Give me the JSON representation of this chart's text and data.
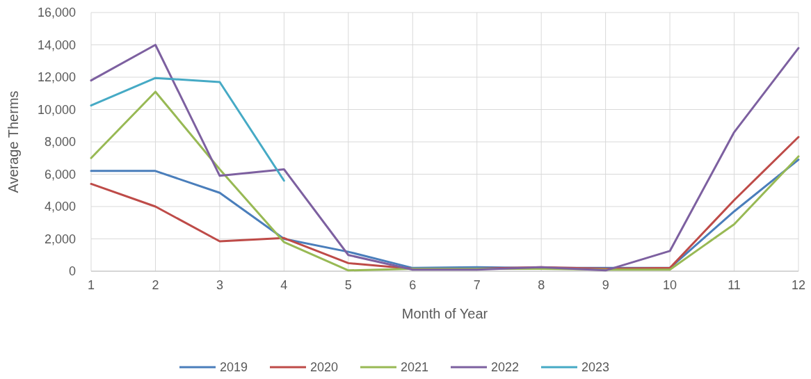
{
  "chart_data": {
    "type": "line",
    "xlabel": "Month of Year",
    "ylabel": "Average Therms",
    "x": [
      1,
      2,
      3,
      4,
      5,
      6,
      7,
      8,
      9,
      10,
      11,
      12
    ],
    "xlim": [
      1,
      12
    ],
    "xticks": [
      1,
      2,
      3,
      4,
      5,
      6,
      7,
      8,
      9,
      10,
      11,
      12
    ],
    "ylim": [
      0,
      16000
    ],
    "yticks": [
      {
        "value": 0,
        "label": "0"
      },
      {
        "value": 2000,
        "label": "2,000"
      },
      {
        "value": 4000,
        "label": "4,000"
      },
      {
        "value": 6000,
        "label": "6,000"
      },
      {
        "value": 8000,
        "label": "8,000"
      },
      {
        "value": 10000,
        "label": "10,000"
      },
      {
        "value": 12000,
        "label": "12,000"
      },
      {
        "value": 14000,
        "label": "14,000"
      },
      {
        "value": 16000,
        "label": "16,000"
      }
    ],
    "grid": true,
    "legend": "bottom",
    "marker": "none",
    "line_style": "solid",
    "series": [
      {
        "name": "2019",
        "color": "#4a7ebb",
        "values": [
          6200,
          6200,
          4850,
          2000,
          1200,
          200,
          250,
          200,
          200,
          200,
          3700,
          6900
        ]
      },
      {
        "name": "2020",
        "color": "#be4b48",
        "values": [
          5400,
          4000,
          1850,
          2050,
          500,
          150,
          150,
          250,
          150,
          200,
          4400,
          8300
        ]
      },
      {
        "name": "2021",
        "color": "#98b954",
        "values": [
          7000,
          11100,
          6300,
          1800,
          50,
          150,
          150,
          150,
          100,
          100,
          2900,
          7100
        ]
      },
      {
        "name": "2022",
        "color": "#7d60a0",
        "values": [
          11800,
          14000,
          5900,
          6300,
          1000,
          100,
          100,
          250,
          50,
          1250,
          8600,
          13800
        ]
      },
      {
        "name": "2023",
        "color": "#46aac5",
        "values": [
          10250,
          11950,
          11700,
          5600,
          null,
          null,
          null,
          null,
          null,
          null,
          null,
          null
        ]
      }
    ]
  }
}
